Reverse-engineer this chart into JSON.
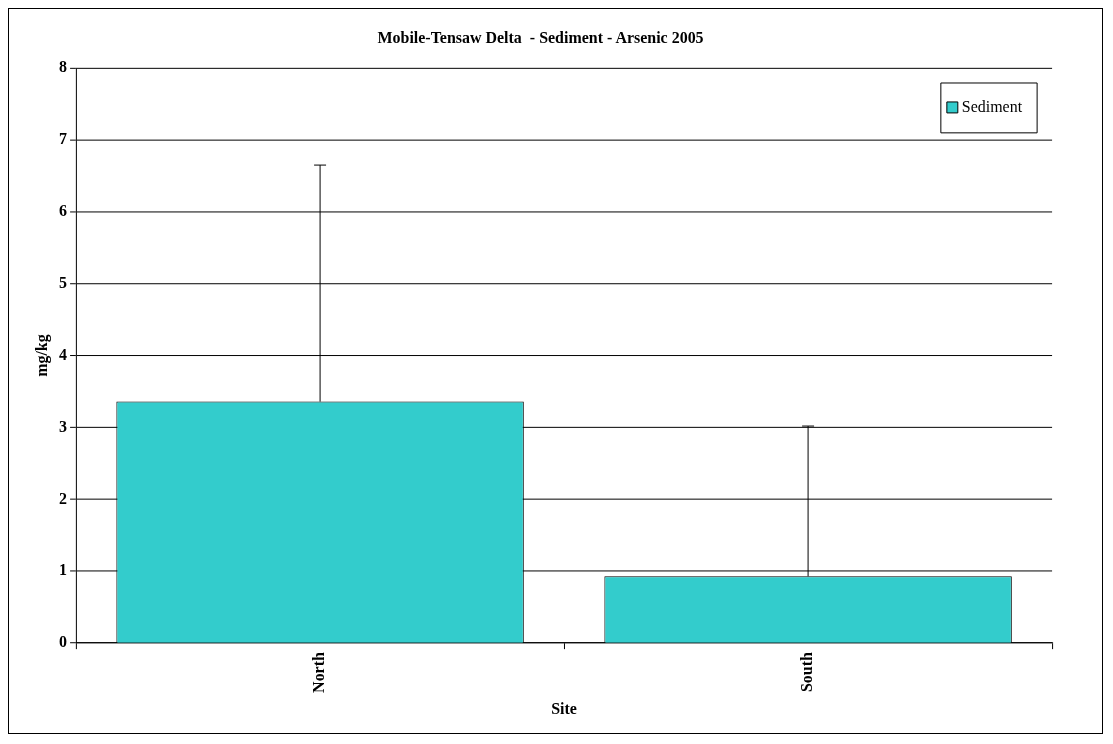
{
  "chart_data": {
    "type": "bar",
    "title": "Mobile-Tensaw Delta  - Sediment - Arsenic 2005",
    "xlabel": "Site",
    "ylabel": "mg/kg",
    "categories": [
      "North",
      "South"
    ],
    "series": [
      {
        "name": "Sediment",
        "color": "#33cccc",
        "values": [
          3.36,
          0.93
        ],
        "errors": [
          [
            3.36,
            6.65
          ],
          [
            0.93,
            3.02
          ]
        ]
      }
    ],
    "ylim": [
      0,
      8
    ],
    "yticks": [
      0,
      1,
      2,
      3,
      4,
      5,
      6,
      7,
      8
    ],
    "grid": "y",
    "legend": "top right"
  }
}
